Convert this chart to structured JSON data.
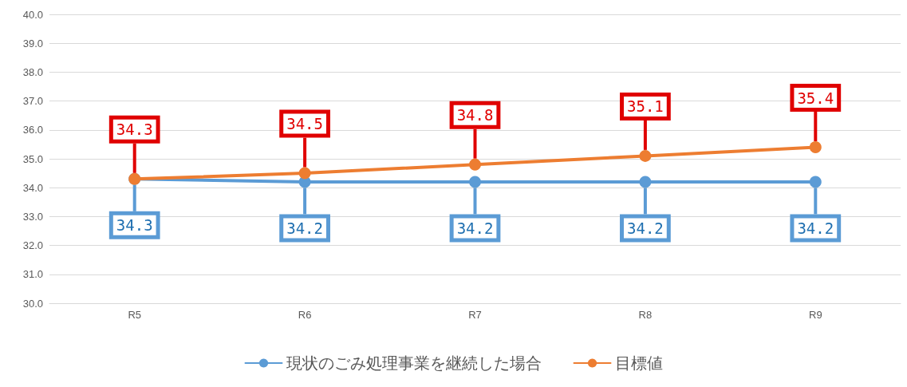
{
  "chart_data": {
    "type": "line",
    "categories": [
      "R5",
      "R6",
      "R7",
      "R8",
      "R9"
    ],
    "series": [
      {
        "name": "現状のごみ処理事業を継続した場合",
        "color": "#5b9bd5",
        "values": [
          34.3,
          34.2,
          34.2,
          34.2,
          34.2
        ]
      },
      {
        "name": "目標値",
        "color": "#ed7d31",
        "values": [
          34.3,
          34.5,
          34.8,
          35.1,
          35.4
        ]
      }
    ],
    "ylim": [
      30,
      40
    ],
    "yticks": [
      {
        "value": 30,
        "label": "30.0"
      },
      {
        "value": 31,
        "label": "31.0"
      },
      {
        "value": 32,
        "label": "32.0"
      },
      {
        "value": 33,
        "label": "33.0"
      },
      {
        "value": 34,
        "label": "34.0"
      },
      {
        "value": 35,
        "label": "35.0"
      },
      {
        "value": 36,
        "label": "36.0"
      },
      {
        "value": 37,
        "label": "37.0"
      },
      {
        "value": 38,
        "label": "38.0"
      },
      {
        "value": 39,
        "label": "39.0"
      },
      {
        "value": 40,
        "label": "40.0"
      }
    ],
    "grid": "y",
    "legend": "bottom",
    "marker": "circle",
    "line_style": "solid",
    "data_labels": true
  }
}
